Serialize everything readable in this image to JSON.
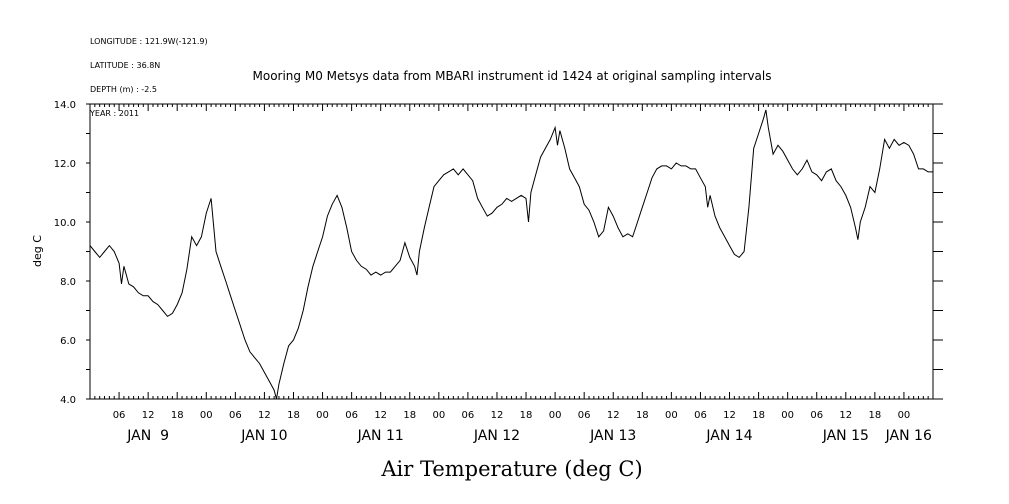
{
  "header": {
    "longitude": "LONGITUDE : 121.9W(-121.9)",
    "latitude": "LATITUDE : 36.8N",
    "depth": "DEPTH (m) : -2.5",
    "year": "YEAR : 2011"
  },
  "chart_data": {
    "type": "line",
    "title": "Mooring M0 Metsys data from MBARI instrument id 1424 at original sampling intervals",
    "xlabel": "Air Temperature (deg C)",
    "ylabel": "deg C",
    "xlim_hours": [
      0,
      174
    ],
    "ylim": [
      4.0,
      14.0
    ],
    "yticks": [
      "4.0",
      "6.0",
      "8.0",
      "10.0",
      "12.0",
      "14.0"
    ],
    "hour_tick_labels": [
      {
        "h": 6,
        "label": "06"
      },
      {
        "h": 12,
        "label": "12"
      },
      {
        "h": 18,
        "label": "18"
      },
      {
        "h": 24,
        "label": "00"
      },
      {
        "h": 30,
        "label": "06"
      },
      {
        "h": 36,
        "label": "12"
      },
      {
        "h": 42,
        "label": "18"
      },
      {
        "h": 48,
        "label": "00"
      },
      {
        "h": 54,
        "label": "06"
      },
      {
        "h": 60,
        "label": "12"
      },
      {
        "h": 66,
        "label": "18"
      },
      {
        "h": 72,
        "label": "00"
      },
      {
        "h": 78,
        "label": "06"
      },
      {
        "h": 84,
        "label": "12"
      },
      {
        "h": 90,
        "label": "18"
      },
      {
        "h": 96,
        "label": "00"
      },
      {
        "h": 102,
        "label": "06"
      },
      {
        "h": 108,
        "label": "12"
      },
      {
        "h": 114,
        "label": "18"
      },
      {
        "h": 120,
        "label": "00"
      },
      {
        "h": 126,
        "label": "06"
      },
      {
        "h": 132,
        "label": "12"
      },
      {
        "h": 138,
        "label": "18"
      },
      {
        "h": 144,
        "label": "00"
      },
      {
        "h": 150,
        "label": "06"
      },
      {
        "h": 156,
        "label": "12"
      },
      {
        "h": 162,
        "label": "18"
      },
      {
        "h": 168,
        "label": "00"
      }
    ],
    "day_labels": [
      {
        "h": 12,
        "label": "JAN  9"
      },
      {
        "h": 36,
        "label": "JAN 10"
      },
      {
        "h": 60,
        "label": "JAN 11"
      },
      {
        "h": 84,
        "label": "JAN 12"
      },
      {
        "h": 108,
        "label": "JAN 13"
      },
      {
        "h": 132,
        "label": "JAN 14"
      },
      {
        "h": 156,
        "label": "JAN 15"
      },
      {
        "h": 169,
        "label": "JAN 16"
      }
    ],
    "series": [
      {
        "points": [
          [
            0.0,
            9.2
          ],
          [
            1.0,
            9.0
          ],
          [
            2.0,
            8.8
          ],
          [
            3.0,
            9.0
          ],
          [
            4.0,
            9.2
          ],
          [
            5.0,
            9.0
          ],
          [
            6.0,
            8.6
          ],
          [
            6.5,
            7.9
          ],
          [
            7.0,
            8.5
          ],
          [
            8.0,
            7.9
          ],
          [
            9.0,
            7.8
          ],
          [
            10.0,
            7.6
          ],
          [
            11.0,
            7.5
          ],
          [
            12.0,
            7.5
          ],
          [
            13.0,
            7.3
          ],
          [
            14.0,
            7.2
          ],
          [
            15.0,
            7.0
          ],
          [
            16.0,
            6.8
          ],
          [
            17.0,
            6.9
          ],
          [
            18.0,
            7.2
          ],
          [
            19.0,
            7.6
          ],
          [
            20.0,
            8.4
          ],
          [
            21.0,
            9.5
          ],
          [
            22.0,
            9.2
          ],
          [
            23.0,
            9.5
          ],
          [
            24.0,
            10.3
          ],
          [
            25.0,
            10.8
          ],
          [
            26.0,
            9.0
          ],
          [
            27.0,
            8.5
          ],
          [
            28.0,
            8.0
          ],
          [
            29.0,
            7.5
          ],
          [
            30.0,
            7.0
          ],
          [
            31.0,
            6.5
          ],
          [
            32.0,
            6.0
          ],
          [
            33.0,
            5.6
          ],
          [
            34.0,
            5.4
          ],
          [
            35.0,
            5.2
          ],
          [
            36.0,
            4.9
          ],
          [
            37.0,
            4.6
          ],
          [
            38.0,
            4.3
          ],
          [
            38.5,
            4.0
          ],
          [
            39.0,
            4.5
          ],
          [
            40.0,
            5.2
          ],
          [
            41.0,
            5.8
          ],
          [
            42.0,
            6.0
          ],
          [
            43.0,
            6.4
          ],
          [
            44.0,
            7.0
          ],
          [
            45.0,
            7.8
          ],
          [
            46.0,
            8.5
          ],
          [
            47.0,
            9.0
          ],
          [
            48.0,
            9.5
          ],
          [
            49.0,
            10.2
          ],
          [
            50.0,
            10.6
          ],
          [
            51.0,
            10.9
          ],
          [
            52.0,
            10.5
          ],
          [
            53.0,
            9.8
          ],
          [
            54.0,
            9.0
          ],
          [
            55.0,
            8.7
          ],
          [
            56.0,
            8.5
          ],
          [
            57.0,
            8.4
          ],
          [
            58.0,
            8.2
          ],
          [
            59.0,
            8.3
          ],
          [
            60.0,
            8.2
          ],
          [
            61.0,
            8.3
          ],
          [
            62.0,
            8.3
          ],
          [
            63.0,
            8.5
          ],
          [
            64.0,
            8.7
          ],
          [
            65.0,
            9.3
          ],
          [
            66.0,
            8.8
          ],
          [
            67.0,
            8.5
          ],
          [
            67.5,
            8.2
          ],
          [
            68.0,
            9.0
          ],
          [
            69.0,
            9.8
          ],
          [
            70.0,
            10.5
          ],
          [
            71.0,
            11.2
          ],
          [
            72.0,
            11.4
          ],
          [
            73.0,
            11.6
          ],
          [
            74.0,
            11.7
          ],
          [
            75.0,
            11.8
          ],
          [
            76.0,
            11.6
          ],
          [
            77.0,
            11.8
          ],
          [
            78.0,
            11.6
          ],
          [
            79.0,
            11.4
          ],
          [
            80.0,
            10.8
          ],
          [
            81.0,
            10.5
          ],
          [
            82.0,
            10.2
          ],
          [
            83.0,
            10.3
          ],
          [
            84.0,
            10.5
          ],
          [
            85.0,
            10.6
          ],
          [
            86.0,
            10.8
          ],
          [
            87.0,
            10.7
          ],
          [
            88.0,
            10.8
          ],
          [
            89.0,
            10.9
          ],
          [
            90.0,
            10.8
          ],
          [
            90.5,
            10.0
          ],
          [
            91.0,
            11.0
          ],
          [
            92.0,
            11.6
          ],
          [
            93.0,
            12.2
          ],
          [
            94.0,
            12.5
          ],
          [
            95.0,
            12.8
          ],
          [
            96.0,
            13.2
          ],
          [
            96.5,
            12.6
          ],
          [
            97.0,
            13.1
          ],
          [
            98.0,
            12.5
          ],
          [
            99.0,
            11.8
          ],
          [
            100.0,
            11.5
          ],
          [
            101.0,
            11.2
          ],
          [
            102.0,
            10.6
          ],
          [
            103.0,
            10.4
          ],
          [
            104.0,
            10.0
          ],
          [
            105.0,
            9.5
          ],
          [
            106.0,
            9.7
          ],
          [
            107.0,
            10.5
          ],
          [
            108.0,
            10.2
          ],
          [
            109.0,
            9.8
          ],
          [
            110.0,
            9.5
          ],
          [
            111.0,
            9.6
          ],
          [
            112.0,
            9.5
          ],
          [
            113.0,
            10.0
          ],
          [
            114.0,
            10.5
          ],
          [
            115.0,
            11.0
          ],
          [
            116.0,
            11.5
          ],
          [
            117.0,
            11.8
          ],
          [
            118.0,
            11.9
          ],
          [
            119.0,
            11.9
          ],
          [
            120.0,
            11.8
          ],
          [
            121.0,
            12.0
          ],
          [
            122.0,
            11.9
          ],
          [
            123.0,
            11.9
          ],
          [
            124.0,
            11.8
          ],
          [
            125.0,
            11.8
          ],
          [
            126.0,
            11.5
          ],
          [
            127.0,
            11.2
          ],
          [
            127.5,
            10.5
          ],
          [
            128.0,
            10.9
          ],
          [
            129.0,
            10.2
          ],
          [
            130.0,
            9.8
          ],
          [
            131.0,
            9.5
          ],
          [
            132.0,
            9.2
          ],
          [
            133.0,
            8.9
          ],
          [
            134.0,
            8.8
          ],
          [
            135.0,
            9.0
          ],
          [
            136.0,
            10.5
          ],
          [
            137.0,
            12.5
          ],
          [
            138.0,
            13.0
          ],
          [
            139.0,
            13.5
          ],
          [
            139.5,
            13.8
          ],
          [
            140.0,
            13.2
          ],
          [
            141.0,
            12.3
          ],
          [
            142.0,
            12.6
          ],
          [
            143.0,
            12.4
          ],
          [
            144.0,
            12.1
          ],
          [
            145.0,
            11.8
          ],
          [
            146.0,
            11.6
          ],
          [
            147.0,
            11.8
          ],
          [
            148.0,
            12.1
          ],
          [
            149.0,
            11.7
          ],
          [
            150.0,
            11.6
          ],
          [
            151.0,
            11.4
          ],
          [
            152.0,
            11.7
          ],
          [
            153.0,
            11.8
          ],
          [
            154.0,
            11.4
          ],
          [
            155.0,
            11.2
          ],
          [
            156.0,
            10.9
          ],
          [
            157.0,
            10.5
          ],
          [
            158.0,
            9.8
          ],
          [
            158.5,
            9.4
          ],
          [
            159.0,
            10.0
          ],
          [
            160.0,
            10.5
          ],
          [
            161.0,
            11.2
          ],
          [
            162.0,
            11.0
          ],
          [
            163.0,
            11.8
          ],
          [
            164.0,
            12.8
          ],
          [
            165.0,
            12.5
          ],
          [
            166.0,
            12.8
          ],
          [
            167.0,
            12.6
          ],
          [
            168.0,
            12.7
          ],
          [
            169.0,
            12.6
          ],
          [
            170.0,
            12.3
          ],
          [
            171.0,
            11.8
          ],
          [
            172.0,
            11.8
          ],
          [
            173.0,
            11.7
          ],
          [
            174.0,
            11.7
          ]
        ]
      }
    ]
  }
}
